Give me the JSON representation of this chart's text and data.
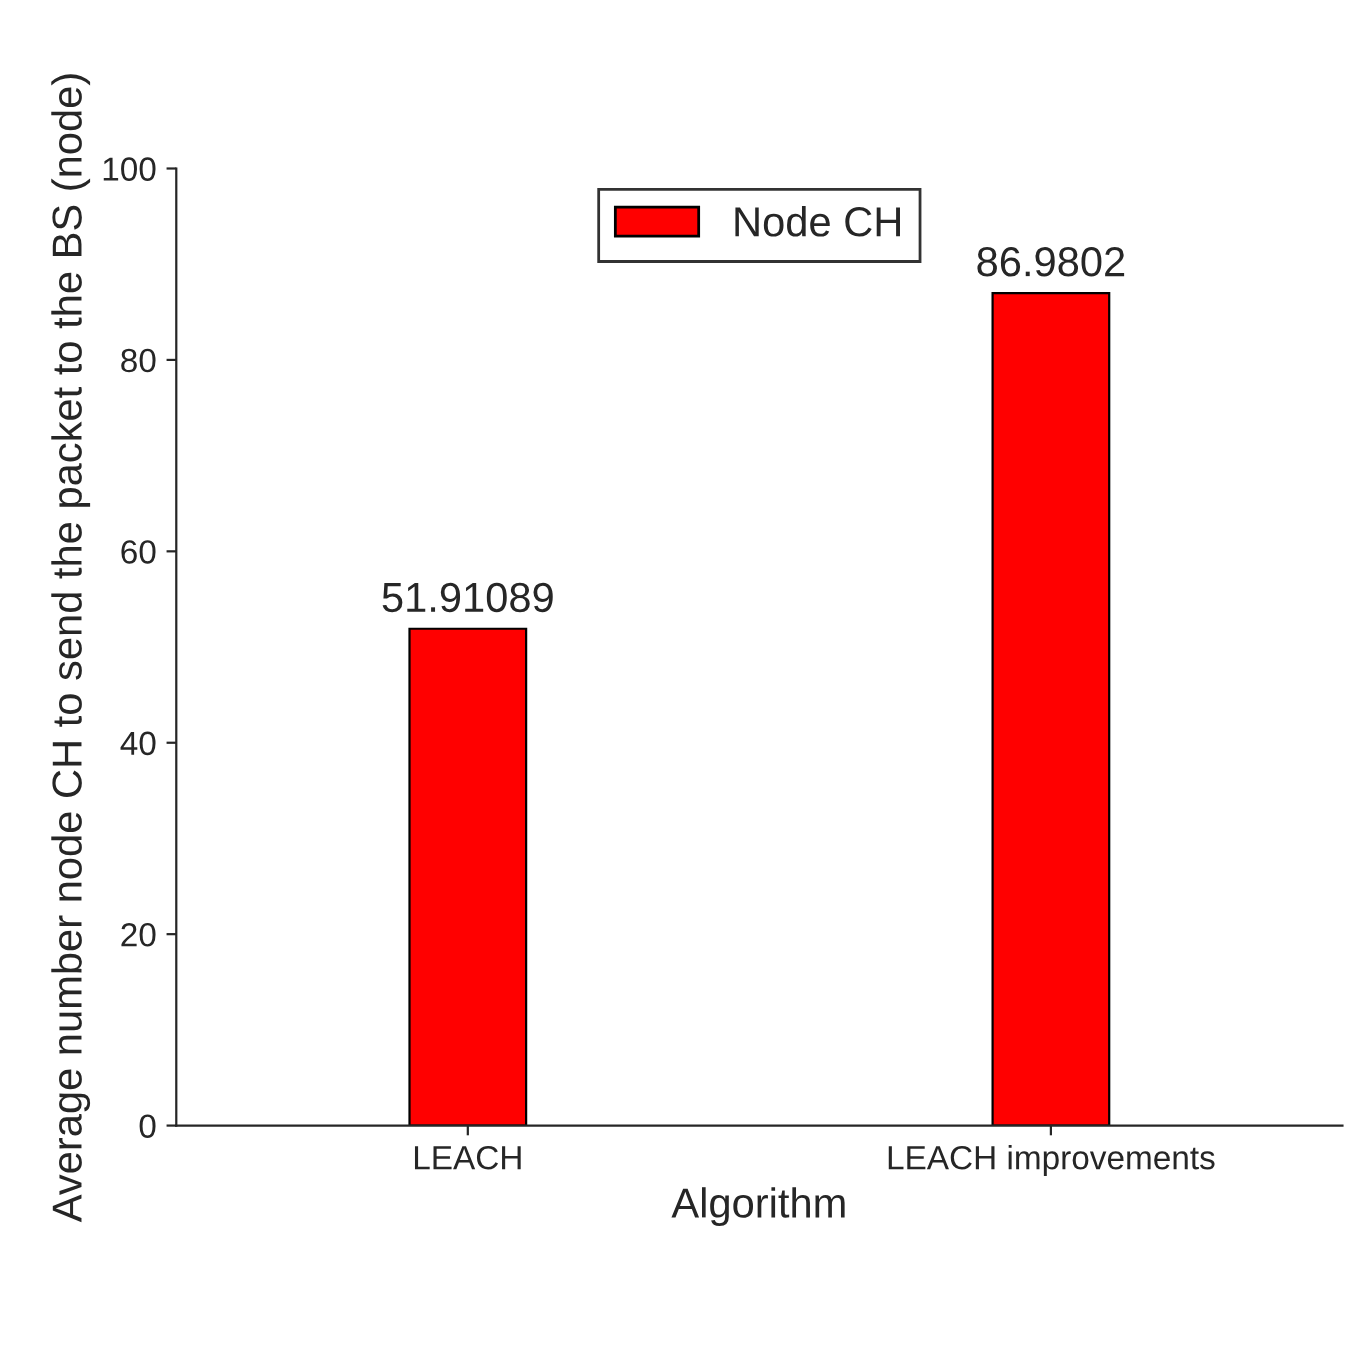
{
  "chart_data": {
    "type": "bar",
    "xlabel": "Algorithm",
    "ylabel": "Average number node CH to send the packet to the BS (node)",
    "categories": [
      "LEACH",
      "LEACH improvements"
    ],
    "series": [
      {
        "name": "Node CH",
        "color": "#ff0000",
        "values": [
          51.91089,
          86.9802
        ]
      }
    ],
    "ylim": [
      0,
      100
    ],
    "yticks": [
      0,
      20,
      40,
      60,
      80,
      100
    ],
    "data_labels": true,
    "legend": "top",
    "grid": false
  }
}
